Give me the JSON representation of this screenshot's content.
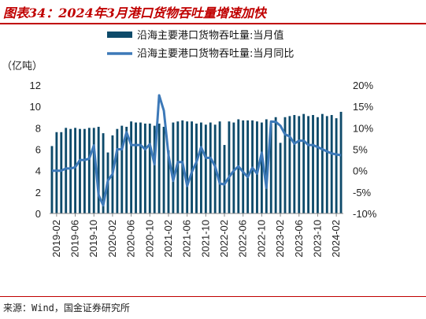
{
  "title": "图表34：2024年3月港口货物吞吐量增速加快",
  "source": "来源：Wind，国金证券研究所",
  "colors": {
    "title": "#c00000",
    "bar": "#0d4a6a",
    "line": "#3d79b8"
  },
  "chart_data": {
    "type": "bar+line",
    "y_left_unit": "（亿吨）",
    "y_left_ticks": [
      "0",
      "2",
      "4",
      "6",
      "8",
      "10",
      "12"
    ],
    "y_left_range": [
      0,
      12
    ],
    "y_right_ticks": [
      "-10%",
      "-5%",
      "0%",
      "5%",
      "10%",
      "15%",
      "20%"
    ],
    "y_right_range": [
      -10,
      20
    ],
    "x_tick_labels": [
      "2019-02",
      "2019-06",
      "2019-10",
      "2020-02",
      "2020-06",
      "2020-10",
      "2021-02",
      "2021-06",
      "2021-10",
      "2022-02",
      "2022-06",
      "2022-10",
      "2023-02",
      "2023-06",
      "2023-10",
      "2024-02"
    ],
    "x_tick_start_index": 1,
    "legend_position": "top-center",
    "series": [
      {
        "name": "沿海主要港口货物吞吐量:当月值",
        "type": "bar",
        "values": [
          6.3,
          7.6,
          7.6,
          8.0,
          7.9,
          8.0,
          7.9,
          7.9,
          8.0,
          8.0,
          8.1,
          7.5,
          5.7,
          7.3,
          7.9,
          8.2,
          8.1,
          8.6,
          8.5,
          8.5,
          8.4,
          8.4,
          8.2,
          8.4,
          8.1,
          5.9,
          8.5,
          8.6,
          8.7,
          8.6,
          8.6,
          8.4,
          8.5,
          8.3,
          8.5,
          8.3,
          8.6,
          6.4,
          8.6,
          8.5,
          8.8,
          8.7,
          8.7,
          8.7,
          8.6,
          8.5,
          8.8,
          8.4,
          9.0,
          6.6,
          9.0,
          9.1,
          9.2,
          9.1,
          9.3,
          9.1,
          9.2,
          9.0,
          9.3,
          9.1,
          9.2,
          8.9,
          9.5
        ]
      },
      {
        "name": "沿海主要港口货物吞吐量:当月同比",
        "type": "line",
        "values": [
          0.0,
          0.0,
          0.0,
          0.5,
          0.5,
          0.8,
          2.5,
          2.5,
          2.8,
          5.9,
          -5.7,
          -8.1,
          -2.3,
          -0.8,
          5.0,
          5.0,
          9.0,
          6.0,
          6.0,
          6.0,
          5.0,
          6.2,
          1.5,
          17.6,
          14.0,
          3.6,
          -2.4,
          2.0,
          2.0,
          -3.6,
          -0.3,
          2.0,
          5.5,
          3.0,
          3.0,
          1.0,
          -3.0,
          -3.2,
          -1.5,
          0.0,
          1.0,
          -0.3,
          -1.5,
          0.7,
          -0.7,
          4.2,
          -4.0,
          11.5,
          11.4,
          10.5,
          8.5,
          8.0,
          6.3,
          7.0,
          7.0,
          6.0,
          6.0,
          5.5,
          5.0,
          4.5,
          4.0,
          3.8,
          3.6
        ]
      }
    ]
  }
}
